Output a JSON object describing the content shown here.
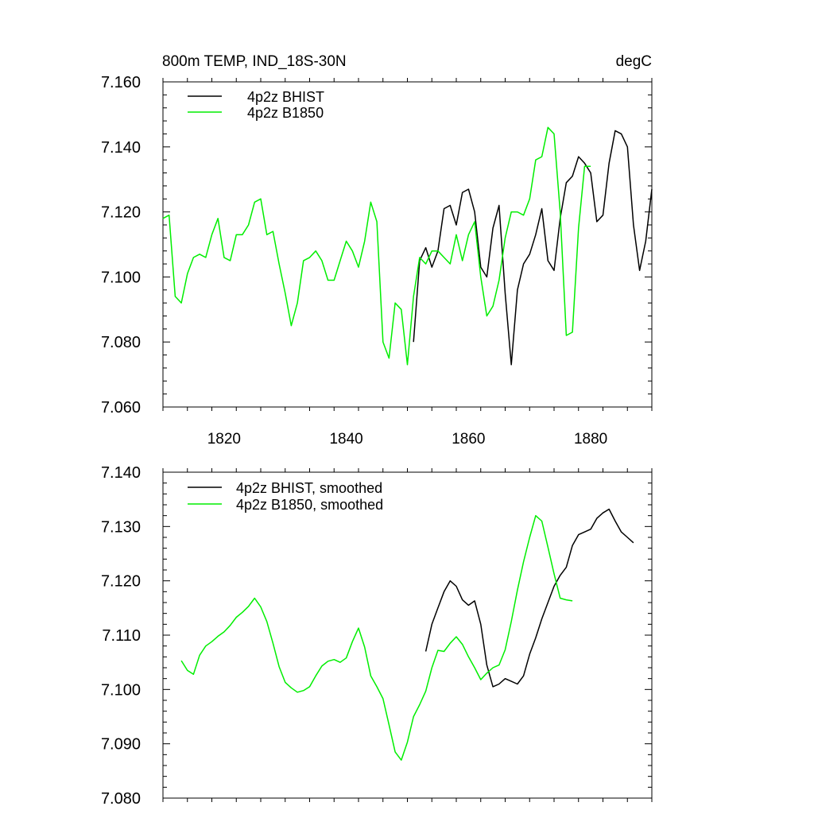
{
  "chart_data": [
    {
      "type": "line",
      "title_left": "800m TEMP, IND_18S-30N",
      "title_right": "degC",
      "xlim": [
        1810,
        1890
      ],
      "ylim": [
        7.06,
        7.16
      ],
      "xticks": [
        1820,
        1840,
        1860,
        1880
      ],
      "xtick_labels": [
        "1820",
        "1840",
        "1860",
        "1880"
      ],
      "yticks": [
        7.06,
        7.08,
        7.1,
        7.12,
        7.14,
        7.16
      ],
      "ytick_labels": [
        "7.060",
        "7.080",
        "7.100",
        "7.120",
        "7.140",
        "7.160"
      ],
      "legend": [
        "4p2z BHIST",
        "4p2z B1850"
      ],
      "series": [
        {
          "name": "4p2z BHIST",
          "color": "#000000",
          "x": [
            1851,
            1852,
            1853,
            1854,
            1855,
            1856,
            1857,
            1858,
            1859,
            1860,
            1861,
            1862,
            1863,
            1864,
            1865,
            1866,
            1867,
            1868,
            1869,
            1870,
            1871,
            1872,
            1873,
            1874,
            1875,
            1876,
            1877,
            1878,
            1879,
            1880,
            1881,
            1882,
            1883,
            1884,
            1885,
            1886,
            1887,
            1888,
            1889,
            1890
          ],
          "values": [
            7.08,
            7.105,
            7.109,
            7.103,
            7.108,
            7.121,
            7.122,
            7.116,
            7.126,
            7.127,
            7.12,
            7.103,
            7.1,
            7.115,
            7.122,
            7.095,
            7.073,
            7.096,
            7.104,
            7.107,
            7.113,
            7.121,
            7.105,
            7.102,
            7.118,
            7.129,
            7.131,
            7.137,
            7.135,
            7.132,
            7.117,
            7.119,
            7.135,
            7.145,
            7.144,
            7.14,
            7.116,
            7.102,
            7.111,
            7.127
          ]
        },
        {
          "name": "4p2z B1850",
          "color": "#00ee00",
          "x": [
            1810,
            1811,
            1812,
            1813,
            1814,
            1815,
            1816,
            1817,
            1818,
            1819,
            1820,
            1821,
            1822,
            1823,
            1824,
            1825,
            1826,
            1827,
            1828,
            1829,
            1830,
            1831,
            1832,
            1833,
            1834,
            1835,
            1836,
            1837,
            1838,
            1839,
            1840,
            1841,
            1842,
            1843,
            1844,
            1845,
            1846,
            1847,
            1848,
            1849,
            1850,
            1851,
            1852,
            1853,
            1854,
            1855,
            1856,
            1857,
            1858,
            1859,
            1860,
            1861,
            1862,
            1863,
            1864,
            1865,
            1866,
            1867,
            1868,
            1869,
            1870,
            1871,
            1872,
            1873,
            1874,
            1875,
            1876,
            1877,
            1878,
            1879,
            1880
          ],
          "values": [
            7.118,
            7.119,
            7.094,
            7.092,
            7.101,
            7.106,
            7.107,
            7.106,
            7.113,
            7.118,
            7.106,
            7.105,
            7.113,
            7.113,
            7.116,
            7.123,
            7.124,
            7.113,
            7.114,
            7.104,
            7.095,
            7.085,
            7.092,
            7.105,
            7.106,
            7.108,
            7.105,
            7.099,
            7.099,
            7.105,
            7.111,
            7.108,
            7.103,
            7.111,
            7.123,
            7.117,
            7.08,
            7.075,
            7.092,
            7.09,
            7.073,
            7.094,
            7.106,
            7.104,
            7.108,
            7.108,
            7.106,
            7.104,
            7.113,
            7.105,
            7.113,
            7.117,
            7.1,
            7.088,
            7.091,
            7.099,
            7.112,
            7.12,
            7.12,
            7.119,
            7.124,
            7.136,
            7.137,
            7.146,
            7.144,
            7.12,
            7.082,
            7.083,
            7.115,
            7.134,
            7.134
          ]
        }
      ]
    },
    {
      "type": "line",
      "xlim": [
        1810,
        1890
      ],
      "ylim": [
        7.08,
        7.14
      ],
      "xticks": [
        1820,
        1840,
        1860,
        1880
      ],
      "yticks": [
        7.08,
        7.09,
        7.1,
        7.11,
        7.12,
        7.13,
        7.14
      ],
      "ytick_labels": [
        "7.080",
        "7.090",
        "7.100",
        "7.110",
        "7.120",
        "7.130",
        "7.140"
      ],
      "legend": [
        "4p2z BHIST, smoothed",
        "4p2z B1850, smoothed"
      ],
      "series": [
        {
          "name": "4p2z BHIST, smoothed",
          "color": "#000000",
          "x": [
            1853,
            1854,
            1855,
            1856,
            1857,
            1858,
            1859,
            1860,
            1861,
            1862,
            1863,
            1864,
            1865,
            1866,
            1867,
            1868,
            1869,
            1870,
            1871,
            1872,
            1873,
            1874,
            1875,
            1876,
            1877,
            1878,
            1879,
            1880,
            1881,
            1882,
            1883,
            1884,
            1885,
            1886,
            1887
          ],
          "values": [
            7.107,
            7.112,
            7.115,
            7.118,
            7.12,
            7.119,
            7.1165,
            7.1155,
            7.1163,
            7.112,
            7.1045,
            7.1005,
            7.101,
            7.102,
            7.1015,
            7.101,
            7.1025,
            7.1065,
            7.1095,
            7.113,
            7.116,
            7.119,
            7.121,
            7.1225,
            7.1265,
            7.1285,
            7.129,
            7.1295,
            7.1315,
            7.1325,
            7.1332,
            7.131,
            7.129,
            7.128,
            7.127
          ]
        },
        {
          "name": "4p2z B1850, smoothed",
          "color": "#00ee00",
          "x": [
            1813,
            1814,
            1815,
            1816,
            1817,
            1818,
            1819,
            1820,
            1821,
            1822,
            1823,
            1824,
            1825,
            1826,
            1827,
            1828,
            1829,
            1830,
            1831,
            1832,
            1833,
            1834,
            1835,
            1836,
            1837,
            1838,
            1839,
            1840,
            1841,
            1842,
            1843,
            1844,
            1845,
            1846,
            1847,
            1848,
            1849,
            1850,
            1851,
            1852,
            1853,
            1854,
            1855,
            1856,
            1857,
            1858,
            1859,
            1860,
            1861,
            1862,
            1863,
            1864,
            1865,
            1866,
            1867,
            1868,
            1869,
            1870,
            1871,
            1872,
            1873,
            1874,
            1875,
            1876,
            1877
          ],
          "values": [
            7.1053,
            7.1035,
            7.1028,
            7.1063,
            7.108,
            7.1088,
            7.1098,
            7.1106,
            7.1118,
            7.1133,
            7.1142,
            7.1153,
            7.1168,
            7.1152,
            7.1125,
            7.1085,
            7.1042,
            7.1013,
            7.1003,
            7.0995,
            7.0998,
            7.1005,
            7.1025,
            7.1043,
            7.1052,
            7.1055,
            7.105,
            7.1058,
            7.1088,
            7.1113,
            7.1078,
            7.1025,
            7.1005,
            7.0983,
            7.0935,
            7.0885,
            7.087,
            7.0903,
            7.095,
            7.0972,
            7.0997,
            7.104,
            7.1072,
            7.107,
            7.1085,
            7.1097,
            7.1083,
            7.106,
            7.104,
            7.1018,
            7.103,
            7.104,
            7.1045,
            7.1073,
            7.1125,
            7.1183,
            7.1235,
            7.128,
            7.132,
            7.131,
            7.1262,
            7.1213,
            7.1168,
            7.1165,
            7.1163
          ]
        }
      ]
    }
  ]
}
